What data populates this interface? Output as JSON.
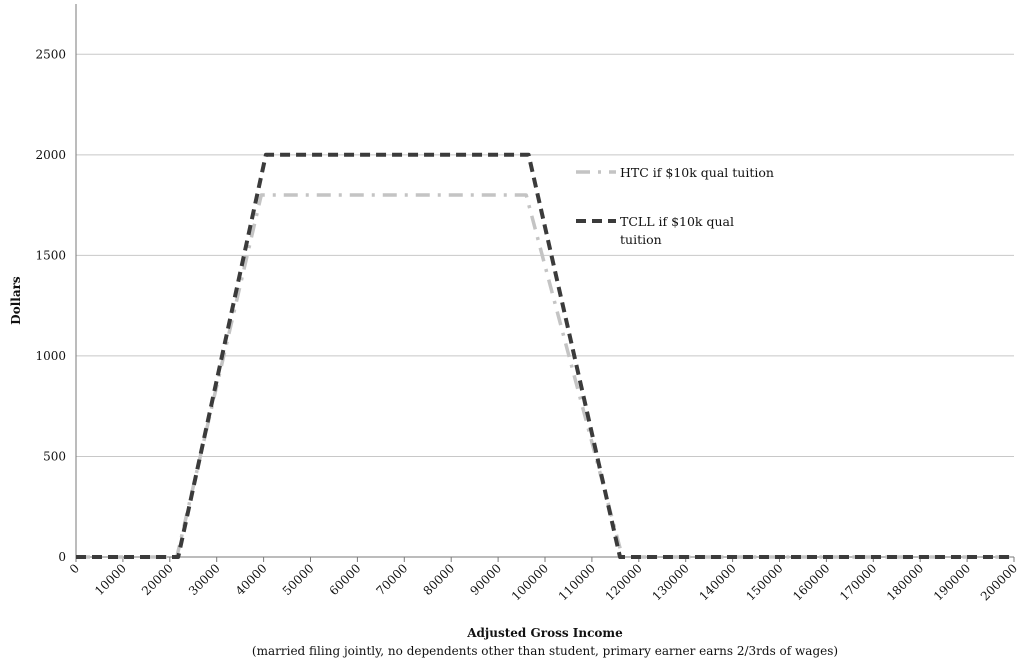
{
  "chart_data": {
    "type": "line",
    "title": "",
    "xlabel": "Adjusted Gross Income",
    "xlabel_note": "(married filing jointly, no dependents  other than student, primary earner earns 2/3rds of wages)",
    "ylabel": "Dollars",
    "xlim": [
      0,
      200000
    ],
    "ylim": [
      0,
      2750
    ],
    "x_ticks": [
      0,
      10000,
      20000,
      30000,
      40000,
      50000,
      60000,
      70000,
      80000,
      90000,
      100000,
      110000,
      120000,
      130000,
      140000,
      150000,
      160000,
      170000,
      180000,
      190000,
      200000
    ],
    "x_tick_labels": [
      "0",
      "10000",
      "20000",
      "30000",
      "40000",
      "50000",
      "60000",
      "70000",
      "80000",
      "90000",
      "100000",
      "110000",
      "120000",
      "130000",
      "140000",
      "150000",
      "160000",
      "170000",
      "180000",
      "190000",
      "200000"
    ],
    "y_ticks": [
      0,
      500,
      1000,
      1500,
      2000,
      2500
    ],
    "y_tick_labels": [
      "0",
      "500",
      "1000",
      "1500",
      "2000",
      "2500"
    ],
    "grid": "horizontal",
    "legend_position": "right",
    "series": [
      {
        "name": "HTC if $10k qual tuition",
        "color": "#c4c4c4",
        "style": "dash-dot",
        "points": [
          [
            0,
            0
          ],
          [
            21500,
            0
          ],
          [
            39500,
            1800
          ],
          [
            96000,
            1800
          ],
          [
            116500,
            0
          ],
          [
            200000,
            0
          ]
        ],
        "legend_lines": [
          "HTC if $10k qual tuition"
        ]
      },
      {
        "name": "TCLL if $10k qual tuition",
        "color": "#3b3b3b",
        "style": "dashed",
        "points": [
          [
            0,
            0
          ],
          [
            21800,
            0
          ],
          [
            40500,
            2000
          ],
          [
            96500,
            2000
          ],
          [
            116000,
            0
          ],
          [
            200000,
            0
          ]
        ],
        "legend_lines": [
          "TCLL if $10k qual",
          "tuition"
        ]
      }
    ]
  }
}
